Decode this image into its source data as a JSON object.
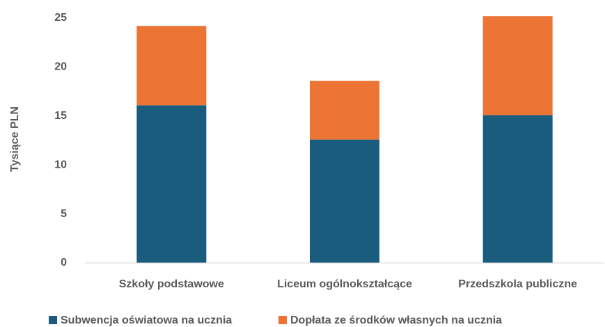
{
  "chart_data": {
    "type": "stacked_bar",
    "y_label": "Tysiące PLN",
    "categories": [
      "Szkoły podstawowe",
      "Liceum ogólnokształcące",
      "Przedszkola publiczne"
    ],
    "series": [
      {
        "name": "Subwencja oświatowa na ucznia",
        "color": "#1a5c7e",
        "values": [
          16.1,
          12.6,
          15.1
        ]
      },
      {
        "name": "Dopłata ze środków własnych na ucznia",
        "color": "#ec7535",
        "values": [
          8.1,
          6.0,
          10.1
        ]
      }
    ],
    "ylim": [
      0,
      25
    ],
    "yticks": [
      0,
      5,
      10,
      15,
      20,
      25
    ],
    "grid": false,
    "legend": "bottom"
  }
}
